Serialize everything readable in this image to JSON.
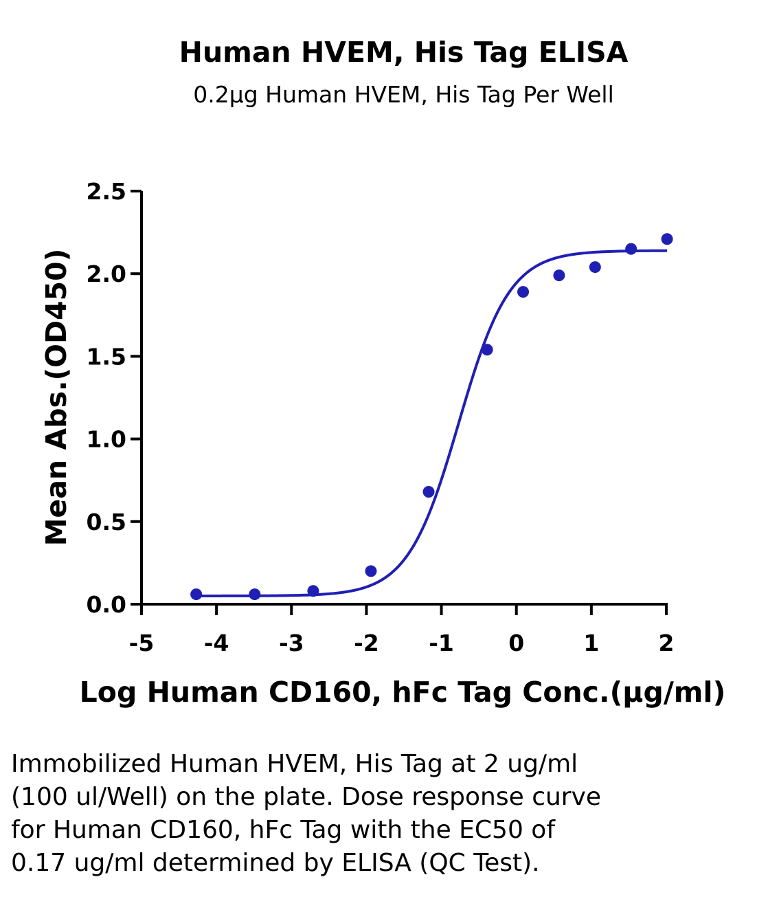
{
  "chart_data": {
    "type": "scatter",
    "title": "Human HVEM, His Tag ELISA",
    "subtitle": "0.2μg Human HVEM, His Tag Per Well",
    "xlabel": "Log Human CD160, hFc Tag Conc.(μg/ml)",
    "ylabel": "Mean Abs.(OD450)",
    "xlim": [
      -5,
      2
    ],
    "ylim": [
      0,
      2.5
    ],
    "x_ticks": [
      -5,
      -4,
      -3,
      -2,
      -1,
      0,
      1,
      2
    ],
    "x_tick_labels": [
      "-5",
      "-4",
      "-3",
      "-2",
      "-1",
      "0",
      "1",
      "2"
    ],
    "y_ticks": [
      0,
      0.5,
      1.0,
      1.5,
      2.0,
      2.5
    ],
    "y_tick_labels": [
      "0.0",
      "0.5",
      "1.0",
      "1.5",
      "2.0",
      "2.5"
    ],
    "grid": false,
    "color": "#1f1fb4",
    "series": [
      {
        "points": [
          {
            "x": -4.27,
            "y": 0.06
          },
          {
            "x": -3.49,
            "y": 0.06
          },
          {
            "x": -2.71,
            "y": 0.08
          },
          {
            "x": -1.94,
            "y": 0.2
          },
          {
            "x": -1.17,
            "y": 0.68
          },
          {
            "x": -0.39,
            "y": 1.54
          },
          {
            "x": 0.09,
            "y": 1.89
          },
          {
            "x": 0.57,
            "y": 1.99
          },
          {
            "x": 1.05,
            "y": 2.04
          },
          {
            "x": 1.53,
            "y": 2.15
          },
          {
            "x": 2.01,
            "y": 2.21
          }
        ],
        "fit": {
          "type": "4PL",
          "bottom": 0.05,
          "top": 2.14,
          "log_ec50": -0.77,
          "hill": 1.28,
          "x_range": [
            -4.27,
            2.01
          ]
        }
      }
    ]
  },
  "caption": "Immobilized Human HVEM, His Tag at 2 ug/ml (100 ul/Well) on the plate. Dose response curve for Human CD160, hFc Tag with the EC50 of 0.17 ug/ml determined by ELISA (QC Test)."
}
